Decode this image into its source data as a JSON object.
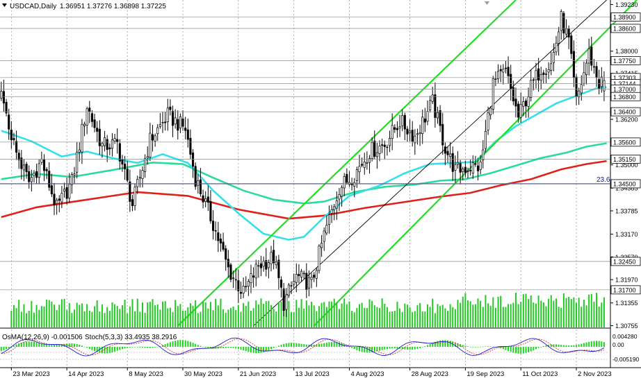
{
  "header": {
    "symbol_label": "USDCAD,Daily",
    "ohlc": "1.36951 1.37276 1.36898 1.37225"
  },
  "indicator_header": {
    "osma_label": "OsMA(12,26,9) -0.001506",
    "stoch_label": "Stoch(5,3,3) 33.4935 38.2916"
  },
  "annotation": {
    "fib_label": "23.6"
  },
  "colors": {
    "candle": "#000000",
    "fast_ma": "#35e0ea",
    "mid_ma": "#2adc9a",
    "slow_ma": "#e0201b",
    "channel": "#22dd22",
    "fib_line": "#0c1a8f",
    "volume": "#22c922",
    "osma": "#1fd31f",
    "stoch_main": "#1a1ad0",
    "stoch_signal": "#e23030",
    "label_box_fill": "#ffffff"
  },
  "chart_data": {
    "type": "candlestick",
    "instrument": "USDCAD",
    "timeframe": "Daily",
    "ylim": [
      1.3069,
      1.3935
    ],
    "x_range_days": [
      -4.5,
      237.5
    ],
    "x_start_date": "2023-03-23",
    "price_ticks": [
      "1.39230",
      "1.38650",
      "1.38000",
      "1.37415",
      "1.36790",
      "1.36200",
      "1.35600",
      "1.35000",
      "1.34385",
      "1.33785",
      "1.33170",
      "1.32570",
      "1.31970",
      "1.31355",
      "1.30755"
    ],
    "price_tick_values": [
      1.3923,
      1.3865,
      1.38,
      1.37415,
      1.3679,
      1.362,
      1.356,
      1.35,
      1.34385,
      1.33785,
      1.3317,
      1.3257,
      1.3197,
      1.31355,
      1.30755
    ],
    "level_labels": [
      "1.38900",
      "1.38600",
      "1.37750",
      "1.37303",
      "1.37144",
      "1.37000",
      "1.36800",
      "1.36400",
      "1.35600",
      "1.35150",
      "1.34500",
      "1.32450",
      "1.31700"
    ],
    "level_values": [
      1.389,
      1.386,
      1.3775,
      1.37303,
      1.37144,
      1.37,
      1.368,
      1.364,
      1.356,
      1.3515,
      1.345,
      1.3245,
      1.317
    ],
    "date_labels": [
      "23 Mar 2023",
      "14 Apr 2023",
      "8 May 2023",
      "30 May 2023",
      "21 Jun 2023",
      "13 Jul 2023",
      "4 Aug 2023",
      "28 Aug 2023",
      "19 Sep 2023",
      "11 Oct 2023",
      "2 Nov 2023"
    ],
    "date_offsets_days": [
      0,
      22,
      46,
      68,
      90,
      112,
      134,
      158,
      180,
      202,
      224
    ],
    "fib_level": 1.345,
    "close_path": [
      [
        -4,
        1.368
      ],
      [
        2,
        1.353
      ],
      [
        7,
        1.3455
      ],
      [
        12,
        1.351
      ],
      [
        18,
        1.3385
      ],
      [
        24,
        1.3455
      ],
      [
        30,
        1.3655
      ],
      [
        36,
        1.355
      ],
      [
        42,
        1.3555
      ],
      [
        48,
        1.3395
      ],
      [
        55,
        1.3565
      ],
      [
        62,
        1.363
      ],
      [
        69,
        1.3595
      ],
      [
        73,
        1.3465
      ],
      [
        80,
        1.3345
      ],
      [
        86,
        1.3225
      ],
      [
        92,
        1.316
      ],
      [
        98,
        1.3235
      ],
      [
        104,
        1.3255
      ],
      [
        108,
        1.3135
      ],
      [
        113,
        1.3205
      ],
      [
        119,
        1.3185
      ],
      [
        124,
        1.3315
      ],
      [
        130,
        1.344
      ],
      [
        136,
        1.3475
      ],
      [
        142,
        1.3535
      ],
      [
        148,
        1.3555
      ],
      [
        154,
        1.3615
      ],
      [
        160,
        1.3575
      ],
      [
        167,
        1.3665
      ],
      [
        172,
        1.3545
      ],
      [
        176,
        1.3485
      ],
      [
        182,
        1.3495
      ],
      [
        186,
        1.3495
      ],
      [
        191,
        1.3715
      ],
      [
        196,
        1.3745
      ],
      [
        201,
        1.3625
      ],
      [
        206,
        1.3705
      ],
      [
        210,
        1.3755
      ],
      [
        214,
        1.3765
      ],
      [
        218,
        1.3885
      ],
      [
        221,
        1.3825
      ],
      [
        224,
        1.3665
      ],
      [
        229,
        1.3795
      ],
      [
        233,
        1.3715
      ],
      [
        235.5,
        1.3722
      ]
    ],
    "last_candle_ohlc": [
      1.36951,
      1.37276,
      1.36898,
      1.37225
    ],
    "fast_ma_path": [
      [
        -4,
        1.359
      ],
      [
        8,
        1.3562
      ],
      [
        20,
        1.3522
      ],
      [
        30,
        1.3535
      ],
      [
        40,
        1.3518
      ],
      [
        50,
        1.3505
      ],
      [
        60,
        1.3528
      ],
      [
        70,
        1.3505
      ],
      [
        80,
        1.3432
      ],
      [
        90,
        1.3372
      ],
      [
        100,
        1.3318
      ],
      [
        110,
        1.3302
      ],
      [
        116,
        1.331
      ],
      [
        124,
        1.3362
      ],
      [
        134,
        1.3418
      ],
      [
        146,
        1.3445
      ],
      [
        156,
        1.3478
      ],
      [
        166,
        1.3502
      ],
      [
        176,
        1.3505
      ],
      [
        184,
        1.3508
      ],
      [
        192,
        1.3562
      ],
      [
        200,
        1.3602
      ],
      [
        208,
        1.3632
      ],
      [
        216,
        1.3662
      ],
      [
        224,
        1.3682
      ],
      [
        232,
        1.3702
      ],
      [
        236,
        1.3705
      ]
    ],
    "mid_ma_path": [
      [
        -4,
        1.3462
      ],
      [
        10,
        1.3476
      ],
      [
        24,
        1.3468
      ],
      [
        40,
        1.3486
      ],
      [
        56,
        1.3506
      ],
      [
        68,
        1.3502
      ],
      [
        80,
        1.3466
      ],
      [
        92,
        1.3432
      ],
      [
        104,
        1.3408
      ],
      [
        116,
        1.3398
      ],
      [
        124,
        1.3403
      ],
      [
        136,
        1.3428
      ],
      [
        148,
        1.3442
      ],
      [
        160,
        1.3448
      ],
      [
        170,
        1.3458
      ],
      [
        180,
        1.3462
      ],
      [
        190,
        1.3478
      ],
      [
        200,
        1.3498
      ],
      [
        210,
        1.3518
      ],
      [
        220,
        1.3532
      ],
      [
        228,
        1.3548
      ],
      [
        236,
        1.3557
      ]
    ],
    "slow_ma_path": [
      [
        -4,
        1.3362
      ],
      [
        10,
        1.3388
      ],
      [
        30,
        1.3408
      ],
      [
        50,
        1.3428
      ],
      [
        70,
        1.3418
      ],
      [
        90,
        1.3382
      ],
      [
        110,
        1.3358
      ],
      [
        124,
        1.3366
      ],
      [
        140,
        1.3386
      ],
      [
        156,
        1.3402
      ],
      [
        170,
        1.3416
      ],
      [
        182,
        1.3426
      ],
      [
        194,
        1.3446
      ],
      [
        206,
        1.3462
      ],
      [
        218,
        1.3488
      ],
      [
        228,
        1.3502
      ],
      [
        236,
        1.351
      ]
    ],
    "channel_upper": [
      [
        66,
        1.3075
      ],
      [
        200,
        1.3935
      ]
    ],
    "channel_lower": [
      [
        120,
        1.3075
      ],
      [
        248,
        1.3935
      ]
    ],
    "channel_mid": [
      [
        96,
        1.3075
      ],
      [
        236,
        1.3935
      ]
    ]
  }
}
